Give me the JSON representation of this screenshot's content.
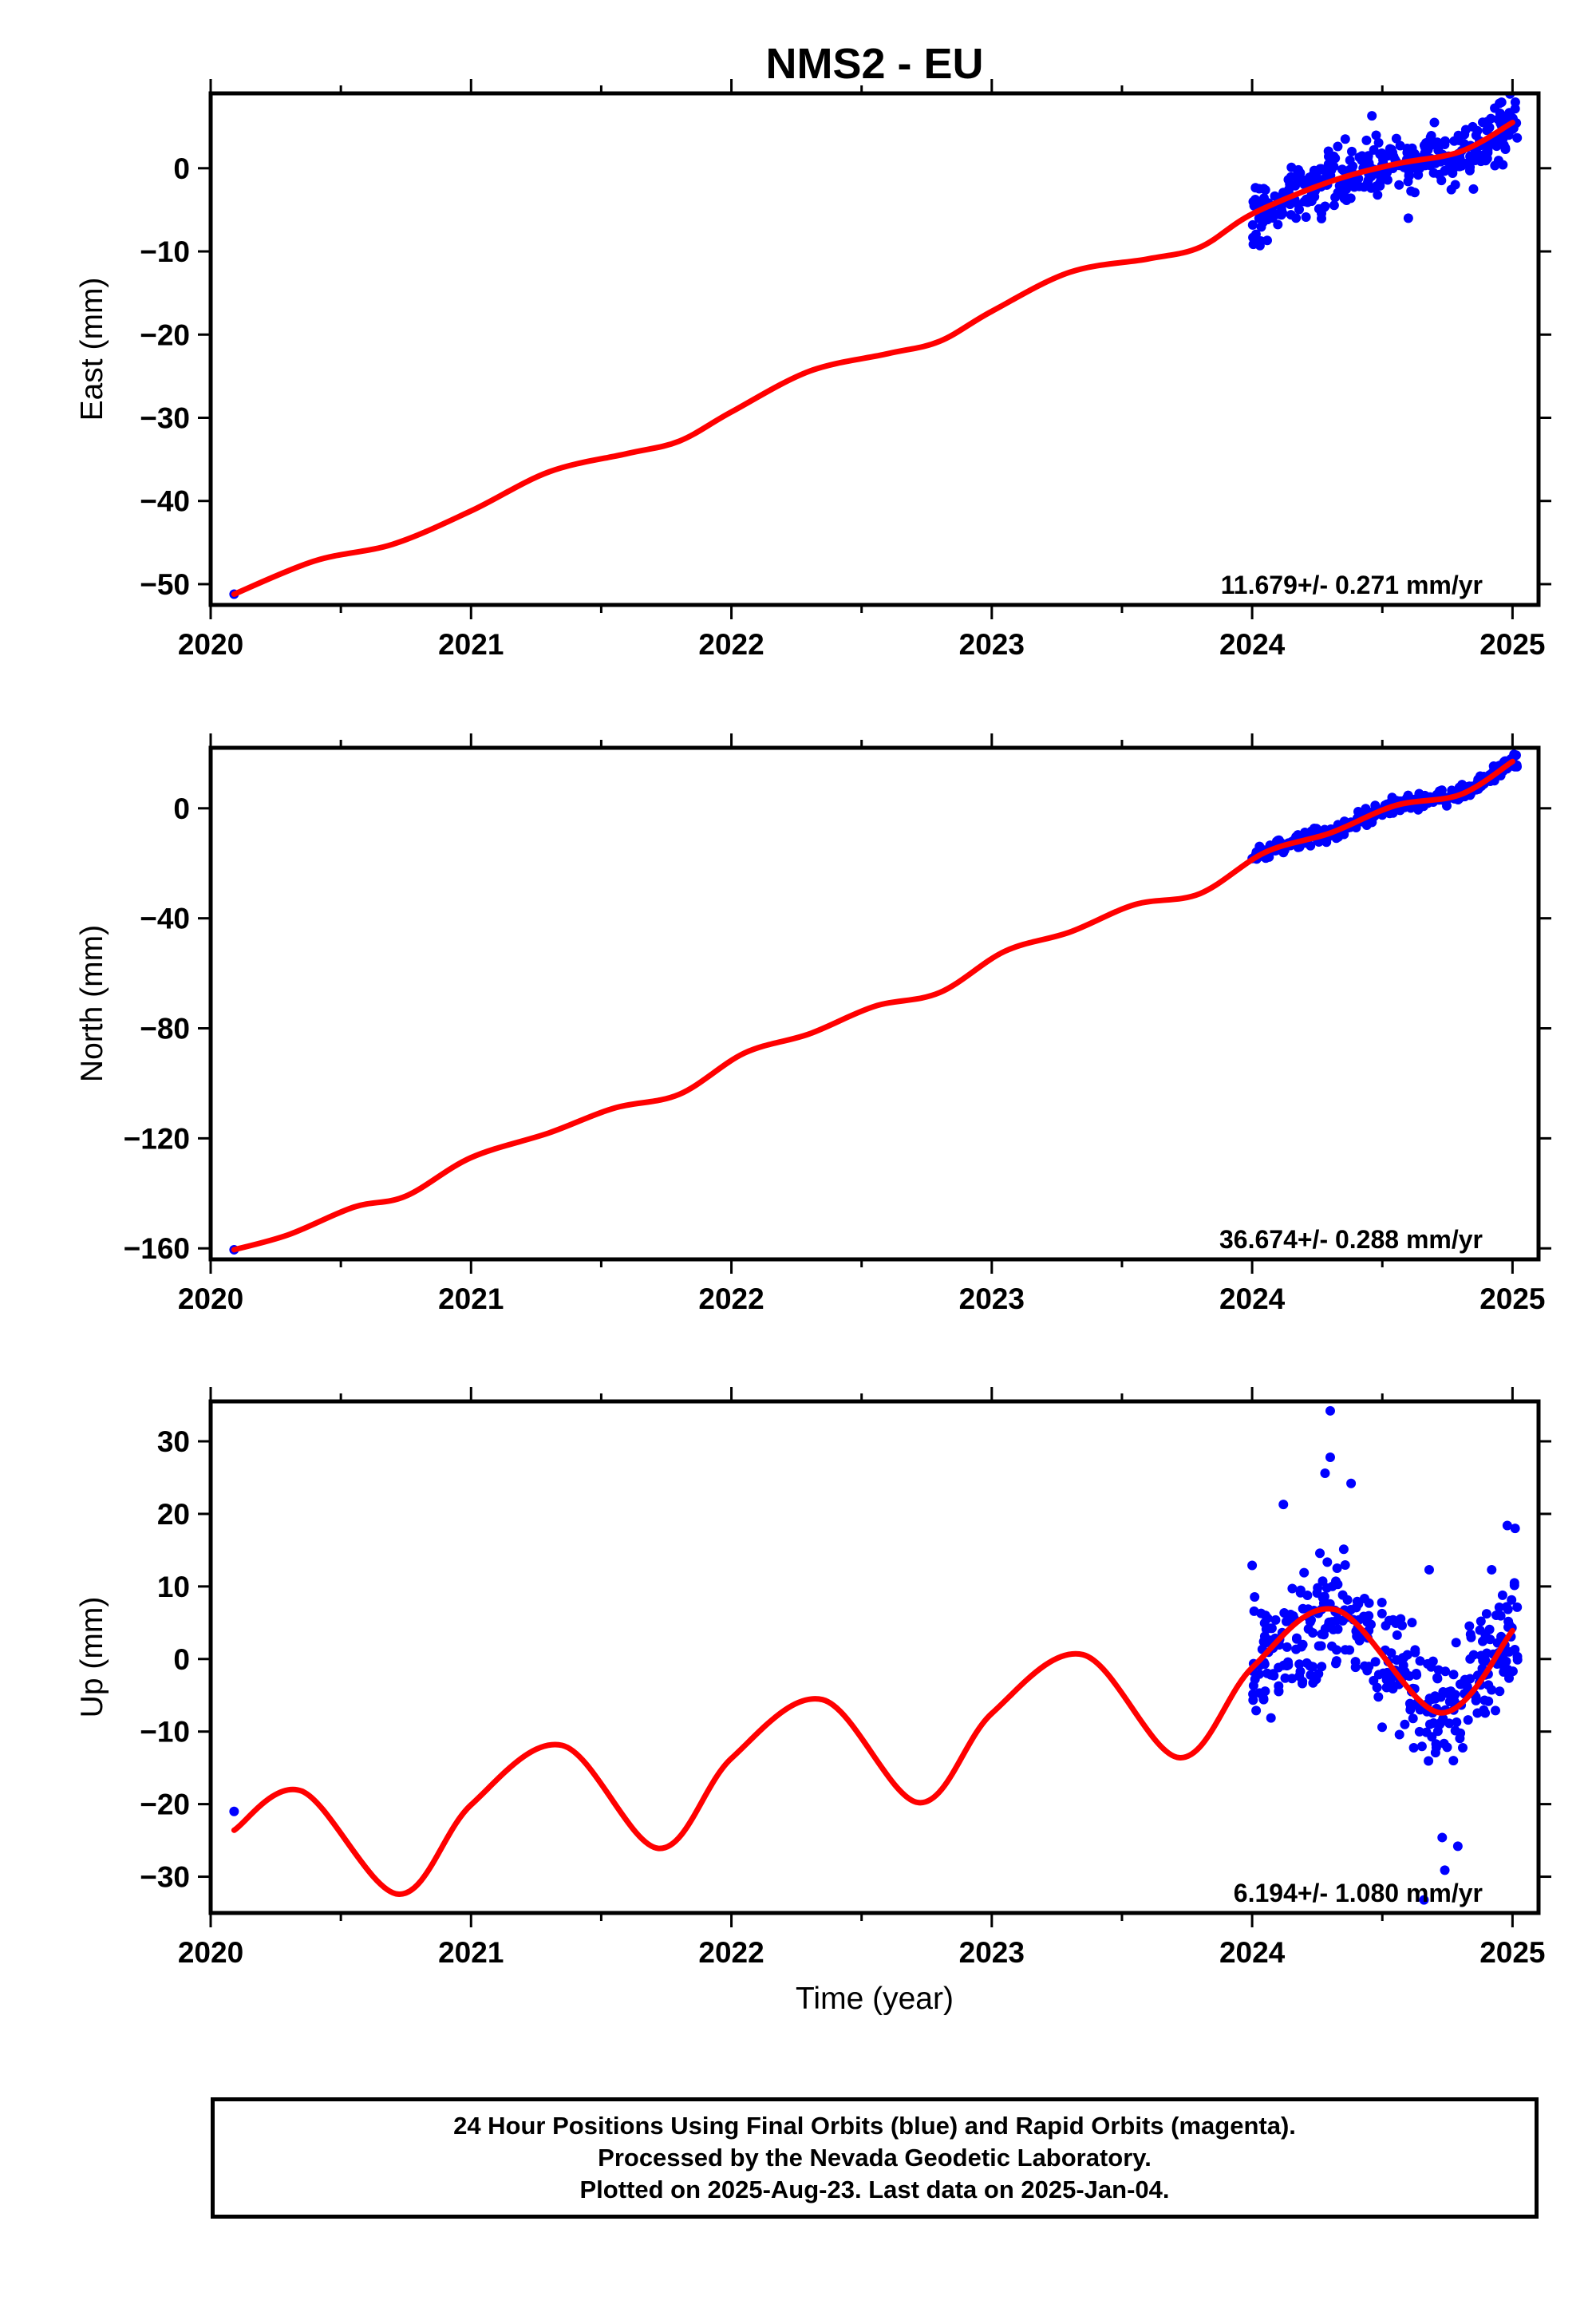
{
  "chart_data": {
    "type": "scatter",
    "title": "NMS2 - EU",
    "xlabel": "Time (year)",
    "xlim": [
      2020,
      2025.1
    ],
    "xticks": [
      "2020",
      "2021",
      "2022",
      "2023",
      "2024",
      "2025"
    ],
    "colors": {
      "observations": "#0000ff",
      "model": "#ff0000",
      "frame": "#000000"
    },
    "panels": [
      {
        "name": "east",
        "ylabel": "East (mm)",
        "ylim": [
          -52.5,
          9
        ],
        "yticks": [
          "−50",
          "−40",
          "−30",
          "−20",
          "−10",
          "0"
        ],
        "rate": "11.679+/- 0.271 mm/yr",
        "model": {
          "x": [
            2020.09,
            2020.4,
            2020.7,
            2021.0,
            2021.3,
            2021.6,
            2021.8,
            2022.0,
            2022.3,
            2022.6,
            2022.8,
            2023.0,
            2023.3,
            2023.6,
            2023.8,
            2024.0,
            2024.3,
            2024.55,
            2024.8,
            2025.0
          ],
          "y": [
            -51.2,
            -47.2,
            -45.2,
            -41.2,
            -36.5,
            -34.3,
            -32.8,
            -29.3,
            -24.4,
            -22.3,
            -20.8,
            -17.2,
            -12.5,
            -10.9,
            -9.5,
            -5.5,
            -1.6,
            0.5,
            2.0,
            5.5
          ]
        },
        "observations": {
          "first": {
            "x": 2020.09,
            "y": -51.2
          },
          "xrange": [
            2024.0,
            2025.02
          ],
          "spread": 2.5,
          "count": 360,
          "outliers": [
            [
              2024.46,
              6.3
            ],
            [
              2024.7,
              5.5
            ],
            [
              2024.95,
              7.8
            ],
            [
              2024.03,
              -9.3
            ],
            [
              2024.6,
              -6.0
            ],
            [
              2024.85,
              -2.5
            ]
          ]
        }
      },
      {
        "name": "north",
        "ylabel": "North (mm)",
        "ylim": [
          -164,
          22
        ],
        "yticks": [
          "−160",
          "−120",
          "−80",
          "−40",
          "0"
        ],
        "rate": "36.674+/- 0.288 mm/yr",
        "model": {
          "x": [
            2020.09,
            2020.3,
            2020.55,
            2020.75,
            2021.0,
            2021.3,
            2021.55,
            2021.8,
            2022.05,
            2022.3,
            2022.55,
            2022.8,
            2023.05,
            2023.3,
            2023.55,
            2023.8,
            2024.05,
            2024.3,
            2024.55,
            2024.8,
            2025.0
          ],
          "y": [
            -160.5,
            -155.0,
            -145.0,
            -141.0,
            -127.0,
            -118.0,
            -109.0,
            -104.0,
            -89.0,
            -82.0,
            -72.0,
            -67.0,
            -52.0,
            -45.0,
            -35.0,
            -31.0,
            -16.0,
            -9.0,
            1.0,
            5.0,
            17.0
          ]
        },
        "observations": {
          "first": {
            "x": 2020.09,
            "y": -160.5
          },
          "xrange": [
            2024.0,
            2025.02
          ],
          "spread": 2.0,
          "count": 360,
          "outliers": []
        }
      },
      {
        "name": "up",
        "ylabel": "Up (mm)",
        "ylim": [
          -35,
          35.5
        ],
        "yticks": [
          "−30",
          "−20",
          "−10",
          "0",
          "10",
          "20",
          "30"
        ],
        "rate": "6.194+/- 1.080 mm/yr",
        "model": {
          "x": [
            2020.09,
            2020.35,
            2020.72,
            2021.0,
            2021.35,
            2021.72,
            2022.0,
            2022.35,
            2022.72,
            2023.0,
            2023.35,
            2023.72,
            2024.0,
            2024.32,
            2024.72,
            2025.0
          ],
          "y": [
            -23.6,
            -18.2,
            -32.4,
            -20.1,
            -11.9,
            -26.1,
            -13.7,
            -5.6,
            -19.8,
            -7.5,
            0.6,
            -13.6,
            -1.2,
            6.8,
            -7.4,
            3.9
          ]
        },
        "observations": {
          "first": {
            "x": 2020.09,
            "y": -21.0
          },
          "xrange": [
            2024.0,
            2025.02
          ],
          "spread": 6.0,
          "count": 360,
          "outliers": [
            [
              2024.3,
              34.2
            ],
            [
              2024.3,
              27.8
            ],
            [
              2024.28,
              25.6
            ],
            [
              2024.38,
              24.2
            ],
            [
              2024.12,
              21.3
            ],
            [
              2024.68,
              12.3
            ],
            [
              2024.92,
              12.3
            ],
            [
              2024.98,
              18.4
            ],
            [
              2025.01,
              18.0
            ],
            [
              2024.74,
              -29.1
            ],
            [
              2024.79,
              -25.8
            ],
            [
              2024.73,
              -24.6
            ],
            [
              2024.66,
              -33.2
            ],
            [
              2024.0,
              12.9
            ]
          ]
        }
      }
    ]
  },
  "footer": {
    "line1": "24 Hour Positions Using Final Orbits (blue) and Rapid Orbits (magenta).",
    "line2": "Processed by the Nevada Geodetic Laboratory.",
    "line3": "Plotted on 2025-Aug-23. Last data on 2025-Jan-04."
  }
}
